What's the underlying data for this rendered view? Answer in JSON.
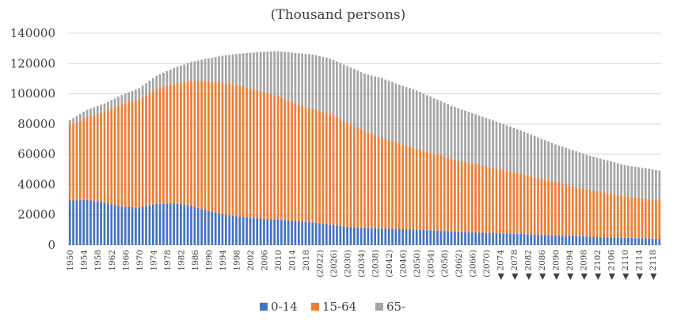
{
  "chart_data": {
    "type": "bar",
    "stacked": true,
    "title": "(Thousand persons)",
    "xlabel": "",
    "ylabel": "",
    "ylim": [
      0,
      140000
    ],
    "yticks": [
      0,
      20000,
      40000,
      60000,
      80000,
      100000,
      120000,
      140000
    ],
    "ytick_labels": [
      "0",
      "20000",
      "40000",
      "60000",
      "80000",
      "100000",
      "120000",
      "140000"
    ],
    "grid": true,
    "legend_position": "bottom",
    "year_start": 1950,
    "year_end": 2120,
    "xtick_labels": [
      "1950",
      "1954",
      "1958",
      "1962",
      "1966",
      "1970",
      "1974",
      "1978",
      "1982",
      "1986",
      "1990",
      "1994",
      "1998",
      "2002",
      "2006",
      "2010",
      "2014",
      "2018",
      "(2022)",
      "(2026)",
      "(2030)",
      "(2034)",
      "(2038)",
      "(2042)",
      "(2046)",
      "(2050)",
      "(2054)",
      "(2058)",
      "(2062)",
      "(2066)",
      "(2070)",
      "◀ 2074",
      "◀ 2078",
      "◀ 2082",
      "◀ 2086",
      "◀ 2090",
      "◀ 2094",
      "◀ 2098",
      "◀ 2102",
      "◀ 2106",
      "◀ 2110",
      "◀ 2114",
      "◀ 2118"
    ],
    "series": [
      {
        "name": "0-14",
        "color": "#4472c4"
      },
      {
        "name": "15-64",
        "color": "#ed7d31"
      },
      {
        "name": "65-",
        "color": "#a5a5a5"
      }
    ],
    "anchors": {
      "0-14": [
        [
          1950,
          29500
        ],
        [
          1955,
          29800
        ],
        [
          1960,
          28100
        ],
        [
          1965,
          25500
        ],
        [
          1970,
          24800
        ],
        [
          1975,
          27200
        ],
        [
          1980,
          27500
        ],
        [
          1985,
          26000
        ],
        [
          1990,
          22500
        ],
        [
          1995,
          20000
        ],
        [
          2000,
          18500
        ],
        [
          2005,
          17500
        ],
        [
          2010,
          16800
        ],
        [
          2015,
          15900
        ],
        [
          2020,
          15000
        ],
        [
          2025,
          13500
        ],
        [
          2030,
          12000
        ],
        [
          2035,
          11300
        ],
        [
          2040,
          11000
        ],
        [
          2045,
          10700
        ],
        [
          2050,
          10200
        ],
        [
          2060,
          9000
        ],
        [
          2070,
          8000
        ],
        [
          2080,
          7300
        ],
        [
          2090,
          6500
        ],
        [
          2100,
          5500
        ],
        [
          2110,
          4800
        ],
        [
          2120,
          4200
        ]
      ],
      "15-64": [
        [
          1950,
          49700
        ],
        [
          1955,
          54800
        ],
        [
          1960,
          60000
        ],
        [
          1965,
          67500
        ],
        [
          1970,
          71500
        ],
        [
          1975,
          75800
        ],
        [
          1980,
          78900
        ],
        [
          1985,
          82500
        ],
        [
          1990,
          86000
        ],
        [
          1995,
          87200
        ],
        [
          2000,
          86200
        ],
        [
          2005,
          84400
        ],
        [
          2010,
          81700
        ],
        [
          2015,
          77300
        ],
        [
          2020,
          75000
        ],
        [
          2025,
          73000
        ],
        [
          2030,
          69000
        ],
        [
          2035,
          64000
        ],
        [
          2040,
          60000
        ],
        [
          2045,
          56500
        ],
        [
          2050,
          53500
        ],
        [
          2060,
          48000
        ],
        [
          2070,
          44000
        ],
        [
          2080,
          40000
        ],
        [
          2090,
          35000
        ],
        [
          2100,
          31000
        ],
        [
          2110,
          27500
        ],
        [
          2120,
          25300
        ]
      ],
      "65-": [
        [
          1950,
          3400
        ],
        [
          1955,
          4800
        ],
        [
          1960,
          5400
        ],
        [
          1965,
          6200
        ],
        [
          1970,
          7400
        ],
        [
          1975,
          8900
        ],
        [
          1980,
          10600
        ],
        [
          1985,
          12500
        ],
        [
          1990,
          14900
        ],
        [
          1995,
          18300
        ],
        [
          2000,
          22000
        ],
        [
          2005,
          25700
        ],
        [
          2010,
          29500
        ],
        [
          2015,
          33800
        ],
        [
          2020,
          36000
        ],
        [
          2025,
          36800
        ],
        [
          2030,
          37300
        ],
        [
          2035,
          38000
        ],
        [
          2040,
          39200
        ],
        [
          2045,
          38800
        ],
        [
          2050,
          38400
        ],
        [
          2060,
          35000
        ],
        [
          2070,
          32000
        ],
        [
          2080,
          28500
        ],
        [
          2090,
          25000
        ],
        [
          2100,
          22500
        ],
        [
          2110,
          20500
        ],
        [
          2120,
          19800
        ]
      ]
    }
  }
}
